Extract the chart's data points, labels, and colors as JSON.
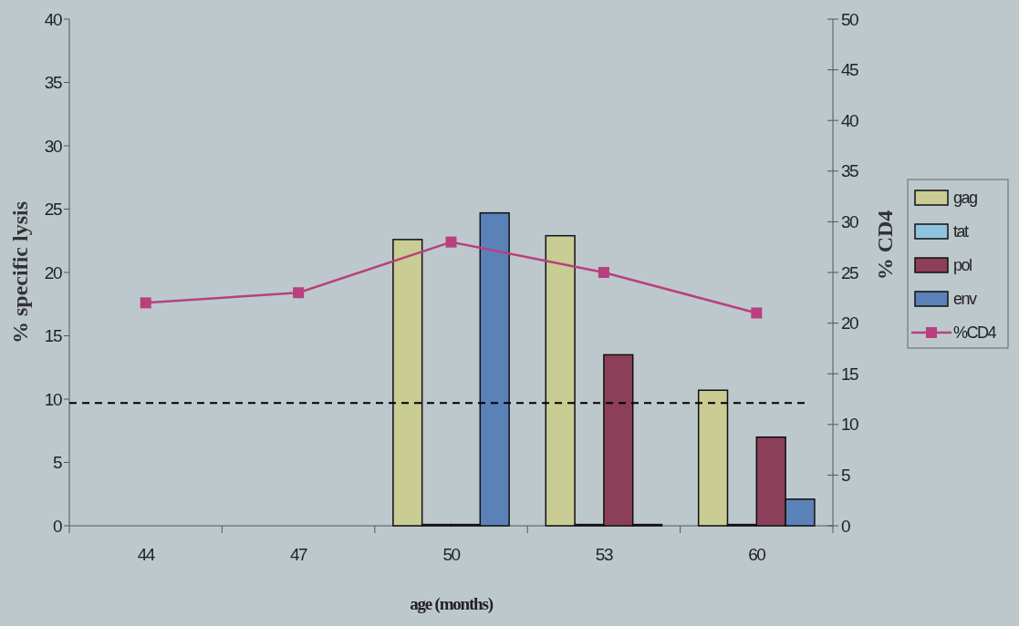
{
  "chart_data": {
    "type": "bar",
    "xlabel": "age (months)",
    "ylabel": "% specific lysis",
    "y2label": "% CD4",
    "categories": [
      "44",
      "47",
      "50",
      "53",
      "60"
    ],
    "series": [
      {
        "name": "gag",
        "color": "#c9cc93",
        "values": [
          null,
          null,
          22.6,
          22.9,
          10.7
        ]
      },
      {
        "name": "tat",
        "color": "#8fc4e0",
        "values": [
          null,
          null,
          0.1,
          0.1,
          0.1
        ]
      },
      {
        "name": "pol",
        "color": "#8b3f58",
        "values": [
          null,
          null,
          0.1,
          13.5,
          7.0
        ]
      },
      {
        "name": "env",
        "color": "#5b82b8",
        "values": [
          null,
          null,
          24.7,
          0.1,
          2.1
        ]
      },
      {
        "name": "%CD4",
        "type": "line",
        "axis": "y2",
        "color": "#b8407e",
        "marker": "square",
        "values": [
          22,
          23,
          28,
          25,
          21
        ]
      }
    ],
    "ylim": [
      0,
      40
    ],
    "yticks": [
      0,
      5,
      10,
      15,
      20,
      25,
      30,
      35,
      40
    ],
    "y2lim": [
      0,
      50
    ],
    "y2ticks": [
      0,
      5,
      10,
      15,
      20,
      25,
      30,
      35,
      40,
      45,
      50
    ],
    "ref_lines": [
      {
        "axis": "y",
        "value": 9.7,
        "color": "#000000",
        "line_style": "dashed"
      }
    ],
    "grid": false,
    "legend": "right"
  }
}
